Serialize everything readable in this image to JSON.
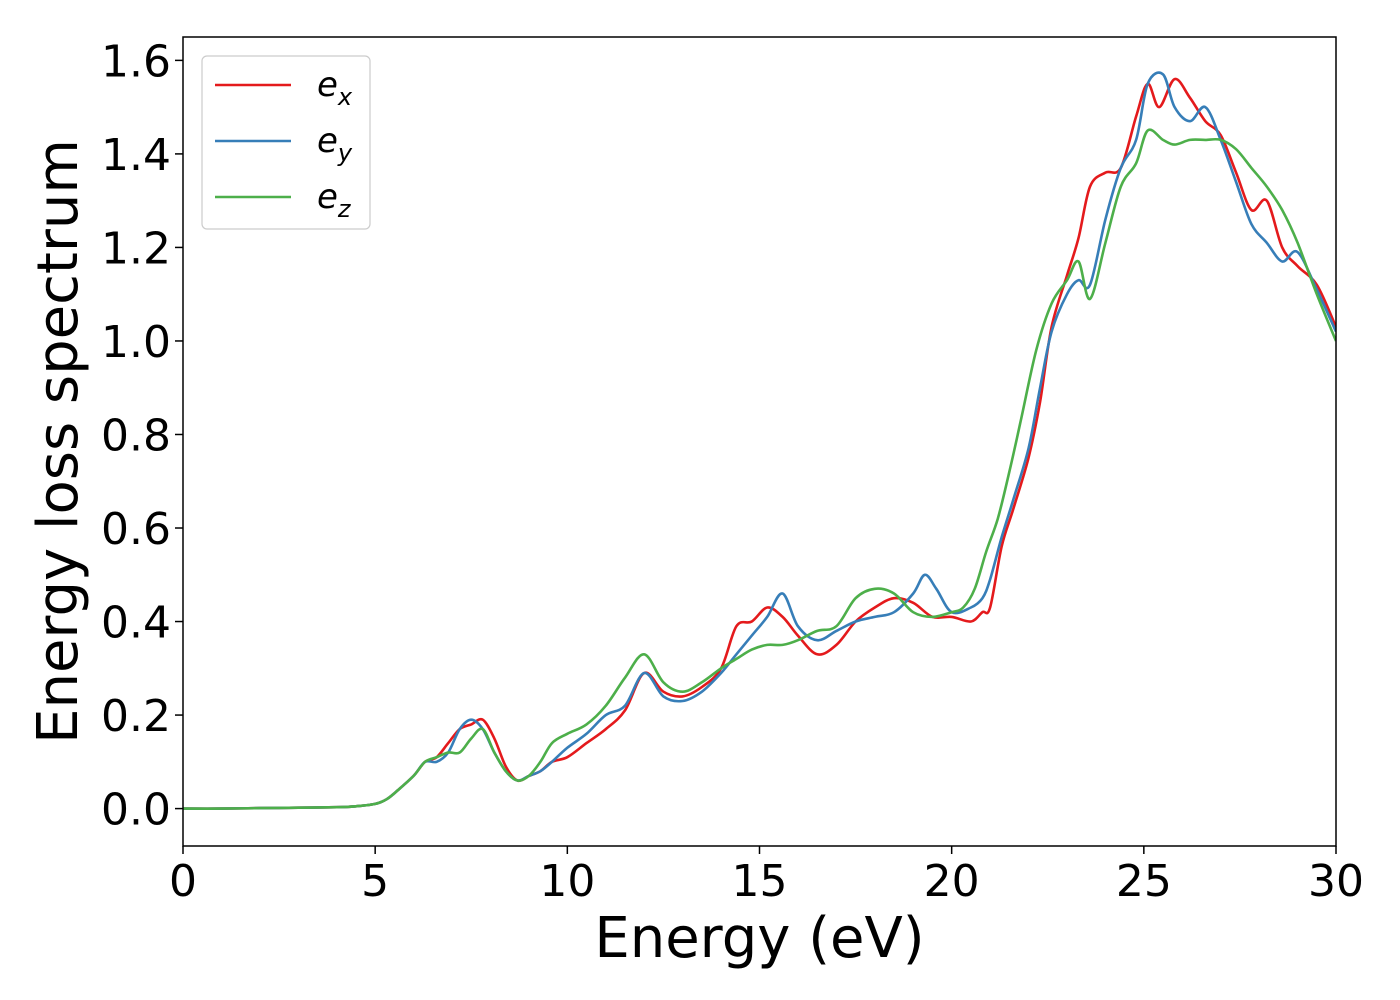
{
  "chart_data": {
    "type": "line",
    "title": "",
    "xlabel": "Energy (eV)",
    "ylabel": "Energy loss spectrum",
    "xlim": [
      0,
      30
    ],
    "ylim": [
      -0.08,
      1.65
    ],
    "xticks": [
      0,
      5,
      10,
      15,
      20,
      25,
      30
    ],
    "xtick_labels": [
      "0",
      "5",
      "10",
      "15",
      "20",
      "25",
      "30"
    ],
    "yticks": [
      0.0,
      0.2,
      0.4,
      0.6,
      0.8,
      1.0,
      1.2,
      1.4,
      1.6
    ],
    "ytick_labels": [
      "0.0",
      "0.2",
      "0.4",
      "0.6",
      "0.8",
      "1.0",
      "1.2",
      "1.4",
      "1.6"
    ],
    "grid": false,
    "legend_position": "top-left",
    "series": [
      {
        "name": "e",
        "sub": "x",
        "color": "#e41a1c",
        "x": [
          0,
          1,
          2,
          3,
          4,
          4.5,
          5,
          5.3,
          5.6,
          6,
          6.3,
          6.6,
          6.9,
          7.2,
          7.5,
          7.8,
          8.1,
          8.4,
          8.7,
          9.0,
          9.3,
          9.6,
          10,
          10.5,
          11,
          11.5,
          12,
          12.5,
          13,
          13.5,
          14,
          14.4,
          14.8,
          15.2,
          15.6,
          16,
          16.5,
          17,
          17.5,
          18,
          18.5,
          19,
          19.5,
          20,
          20.5,
          20.8,
          21,
          21.3,
          21.6,
          22,
          22.3,
          22.6,
          23,
          23.3,
          23.6,
          24,
          24.4,
          24.8,
          25.1,
          25.4,
          25.8,
          26.2,
          26.6,
          27,
          27.4,
          27.8,
          28.2,
          28.6,
          29,
          29.5,
          30
        ],
        "y": [
          0,
          0,
          0.001,
          0.002,
          0.003,
          0.005,
          0.01,
          0.02,
          0.04,
          0.07,
          0.1,
          0.11,
          0.14,
          0.17,
          0.18,
          0.19,
          0.15,
          0.09,
          0.06,
          0.07,
          0.08,
          0.1,
          0.11,
          0.14,
          0.17,
          0.21,
          0.29,
          0.25,
          0.24,
          0.26,
          0.3,
          0.39,
          0.4,
          0.43,
          0.41,
          0.37,
          0.33,
          0.35,
          0.4,
          0.43,
          0.45,
          0.44,
          0.41,
          0.41,
          0.4,
          0.42,
          0.43,
          0.56,
          0.64,
          0.75,
          0.87,
          1.03,
          1.14,
          1.22,
          1.33,
          1.36,
          1.37,
          1.48,
          1.55,
          1.5,
          1.56,
          1.52,
          1.47,
          1.44,
          1.36,
          1.28,
          1.3,
          1.2,
          1.16,
          1.12,
          1.03
        ]
      },
      {
        "name": "e",
        "sub": "y",
        "color": "#377eb8",
        "x": [
          0,
          1,
          2,
          3,
          4,
          4.5,
          5,
          5.3,
          5.6,
          6,
          6.3,
          6.6,
          6.9,
          7.2,
          7.5,
          7.8,
          8.1,
          8.4,
          8.7,
          9.0,
          9.3,
          9.6,
          10,
          10.5,
          11,
          11.5,
          12,
          12.5,
          13,
          13.5,
          14,
          14.4,
          14.8,
          15.2,
          15.6,
          16,
          16.5,
          17,
          17.5,
          18,
          18.5,
          19,
          19.3,
          19.6,
          20,
          20.5,
          20.8,
          21,
          21.3,
          21.6,
          22,
          22.3,
          22.6,
          23,
          23.3,
          23.6,
          24,
          24.4,
          24.8,
          25.1,
          25.5,
          25.8,
          26.2,
          26.6,
          27,
          27.4,
          27.8,
          28.2,
          28.6,
          29,
          29.5,
          30
        ],
        "y": [
          0,
          0,
          0.001,
          0.002,
          0.003,
          0.005,
          0.01,
          0.02,
          0.04,
          0.07,
          0.1,
          0.1,
          0.12,
          0.17,
          0.19,
          0.17,
          0.12,
          0.08,
          0.06,
          0.07,
          0.08,
          0.1,
          0.13,
          0.16,
          0.2,
          0.22,
          0.29,
          0.24,
          0.23,
          0.25,
          0.29,
          0.33,
          0.37,
          0.41,
          0.46,
          0.39,
          0.36,
          0.38,
          0.4,
          0.41,
          0.42,
          0.46,
          0.5,
          0.47,
          0.42,
          0.43,
          0.45,
          0.49,
          0.58,
          0.66,
          0.77,
          0.9,
          1.02,
          1.1,
          1.13,
          1.12,
          1.26,
          1.37,
          1.43,
          1.55,
          1.57,
          1.5,
          1.47,
          1.5,
          1.43,
          1.34,
          1.25,
          1.21,
          1.17,
          1.19,
          1.11,
          1.02
        ]
      },
      {
        "name": "e",
        "sub": "z",
        "color": "#4daf4a",
        "x": [
          0,
          1,
          2,
          3,
          4,
          4.5,
          5,
          5.3,
          5.6,
          6,
          6.3,
          6.6,
          6.9,
          7.2,
          7.5,
          7.8,
          8.1,
          8.4,
          8.7,
          9.0,
          9.3,
          9.6,
          10,
          10.5,
          11,
          11.5,
          12,
          12.5,
          13,
          13.5,
          14,
          14.4,
          14.8,
          15.2,
          15.6,
          16,
          16.5,
          17,
          17.5,
          18,
          18.5,
          19,
          19.5,
          20,
          20.3,
          20.6,
          20.9,
          21.2,
          21.5,
          21.8,
          22.2,
          22.6,
          23,
          23.3,
          23.6,
          24,
          24.4,
          24.8,
          25.1,
          25.5,
          25.8,
          26.2,
          26.6,
          27,
          27.4,
          27.8,
          28.2,
          28.6,
          29,
          29.5,
          30
        ],
        "y": [
          0,
          0,
          0.001,
          0.002,
          0.003,
          0.005,
          0.01,
          0.02,
          0.04,
          0.07,
          0.1,
          0.11,
          0.12,
          0.12,
          0.15,
          0.17,
          0.12,
          0.08,
          0.06,
          0.07,
          0.1,
          0.14,
          0.16,
          0.18,
          0.22,
          0.28,
          0.33,
          0.27,
          0.25,
          0.27,
          0.3,
          0.32,
          0.34,
          0.35,
          0.35,
          0.36,
          0.38,
          0.39,
          0.45,
          0.47,
          0.46,
          0.42,
          0.41,
          0.42,
          0.43,
          0.47,
          0.55,
          0.62,
          0.72,
          0.83,
          0.98,
          1.08,
          1.13,
          1.17,
          1.09,
          1.21,
          1.33,
          1.38,
          1.45,
          1.43,
          1.42,
          1.43,
          1.43,
          1.43,
          1.41,
          1.37,
          1.33,
          1.28,
          1.21,
          1.1,
          1.0
        ]
      }
    ]
  }
}
